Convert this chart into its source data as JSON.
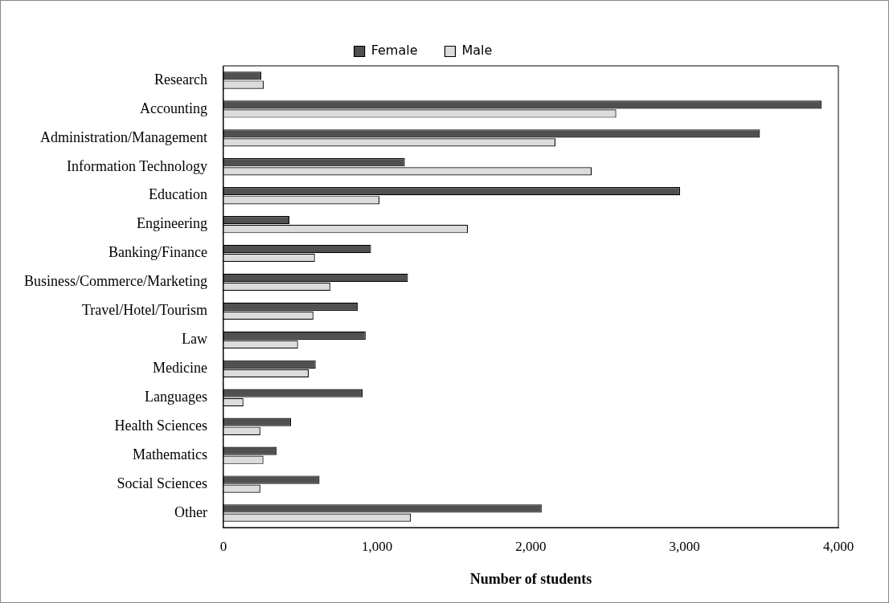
{
  "chart_data": {
    "type": "bar",
    "orientation": "horizontal",
    "xlabel": "Number of students",
    "categories": [
      "Research",
      "Accounting",
      "Administration/Management",
      "Information Technology",
      "Education",
      "Engineering",
      "Banking/Finance",
      "Business/Commerce/Marketing",
      "Travel/Hotel/Tourism",
      "Law",
      "Medicine",
      "Languages",
      "Health Sciences",
      "Mathematics",
      "Social Sciences",
      "Other"
    ],
    "series": [
      {
        "name": "Female",
        "color": "#505050",
        "values": [
          246,
          3890,
          3490,
          1180,
          2970,
          430,
          960,
          1200,
          875,
          925,
          600,
          905,
          440,
          345,
          625,
          2070
        ]
      },
      {
        "name": "Male",
        "color": "#dcdcdc",
        "values": [
          263,
          2555,
          2160,
          2395,
          1015,
          1590,
          595,
          695,
          585,
          485,
          555,
          130,
          240,
          260,
          240,
          1220
        ]
      }
    ],
    "xlim": [
      0,
      4000
    ],
    "xticks": [
      {
        "value": 0,
        "label": "0"
      },
      {
        "value": 1000,
        "label": "1,000"
      },
      {
        "value": 2000,
        "label": "2,000"
      },
      {
        "value": 3000,
        "label": "3,000"
      },
      {
        "value": 4000,
        "label": "4,000"
      }
    ],
    "grid": false,
    "legend": "top"
  }
}
